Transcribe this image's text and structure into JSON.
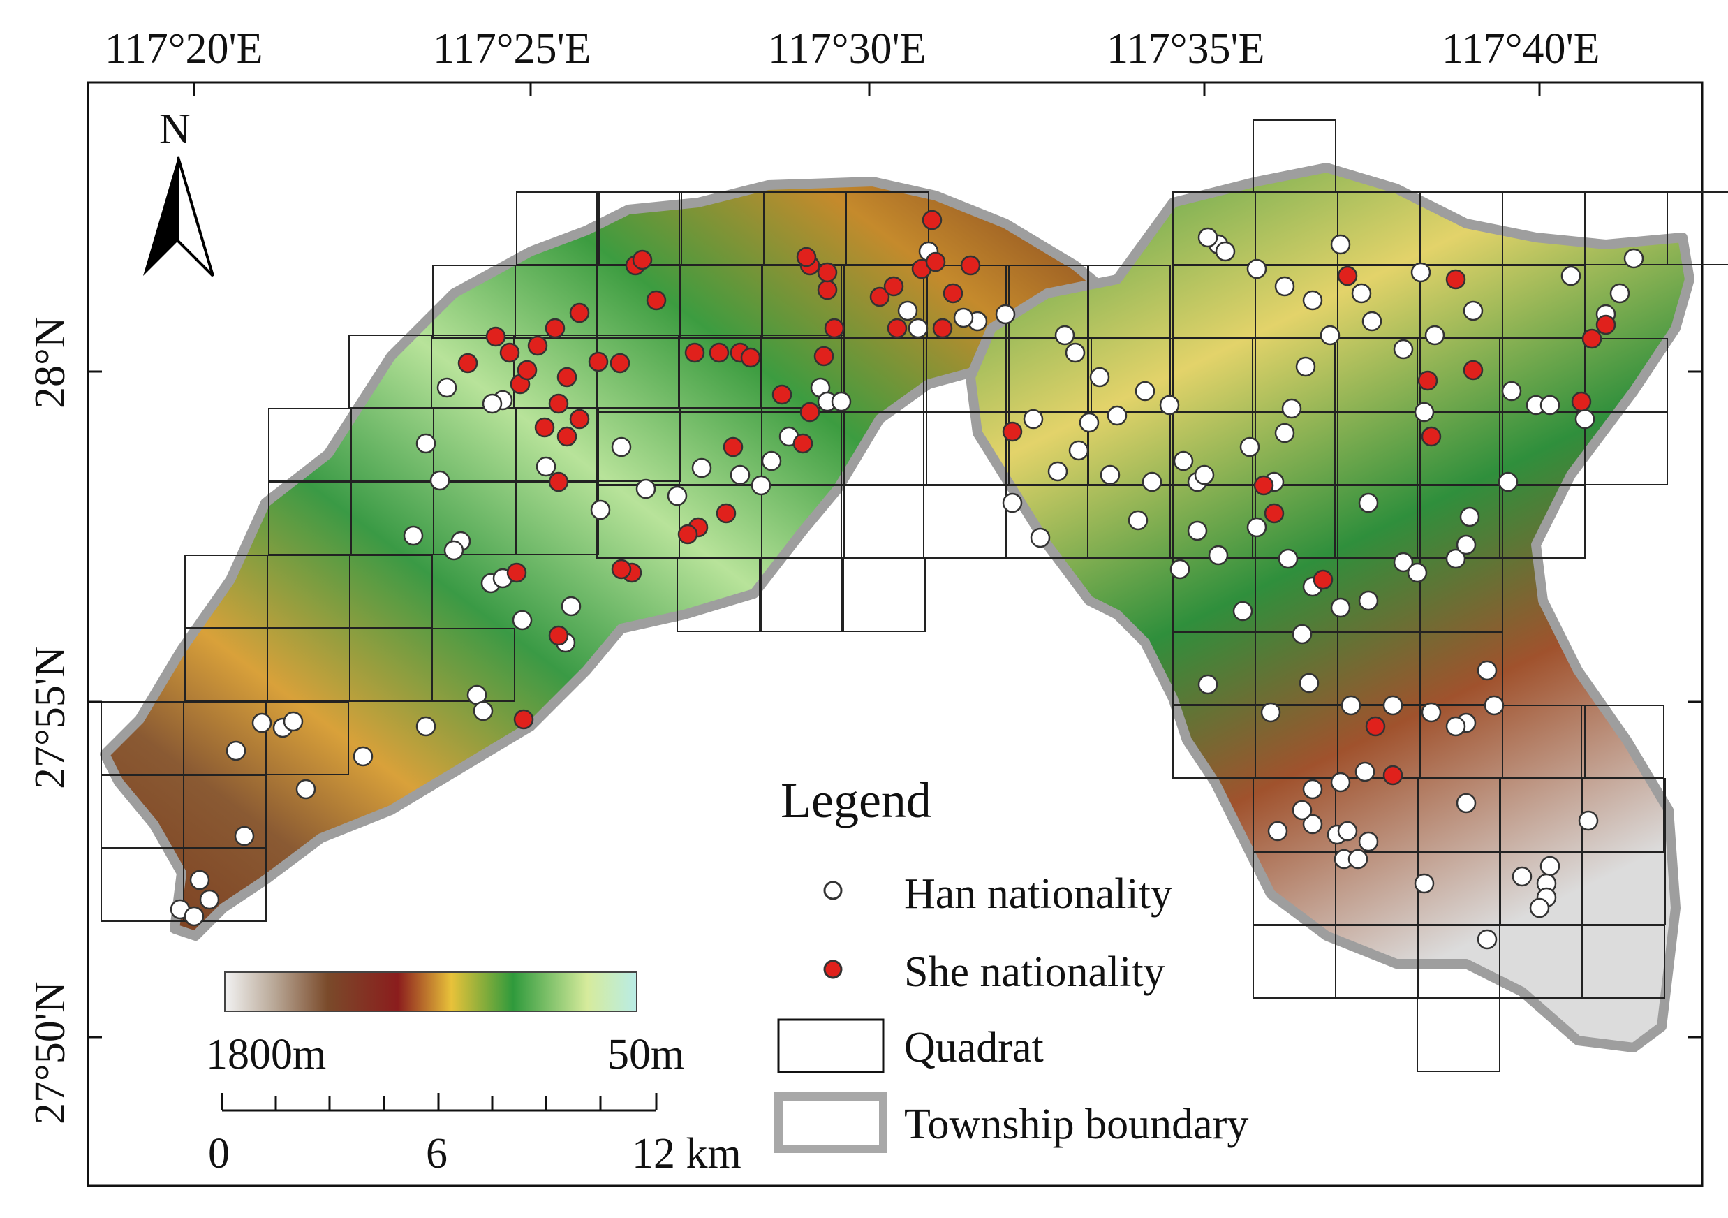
{
  "map": {
    "axes": {
      "top_labels": [
        "117°20'E",
        "117°25'E",
        "117°30'E",
        "117°35'E",
        "117°40'E"
      ],
      "left_labels": [
        "28°N",
        "27°55'N",
        "27°50'N"
      ]
    },
    "north_label": "N",
    "elevation_bar": {
      "max_label": "1800m",
      "min_label": "50m",
      "colors": [
        "#f2f2f2",
        "#b9a897",
        "#7a4a2a",
        "#8b1d1d",
        "#e8c23a",
        "#2f9a3c",
        "#d6eb9c",
        "#b9ece6"
      ]
    },
    "scale_bar": {
      "labels": [
        "0",
        "6",
        "12 km"
      ]
    },
    "legend": {
      "title": "Legend",
      "items": [
        {
          "label": "Han nationality",
          "symbol": "white-circle",
          "color": "#ffffff"
        },
        {
          "label": "She nationality",
          "symbol": "red-circle",
          "color": "#e0211c"
        },
        {
          "label": "Quadrat",
          "symbol": "rectangle"
        },
        {
          "label": "Township boundary",
          "symbol": "gray-rectangle",
          "color": "#a8a8a8"
        }
      ]
    },
    "colors": {
      "han": "#ffffff",
      "she": "#e0211c",
      "quadrat": "#222222",
      "boundary": "#9e9e9e"
    }
  }
}
